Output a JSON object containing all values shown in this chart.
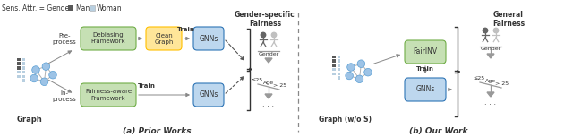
{
  "title_left": "(a) Prior Works",
  "title_right": "(b) Our Work",
  "legend_text": "Sens. Attr. = Gender",
  "man_label": "Man",
  "woman_label": "Woman",
  "gender_specific_label": "Gender-specific\nFairness",
  "general_fairness_label": "General\nFairness",
  "graph_label": "Graph",
  "graph_wo_s_label": "Graph (w/o S)",
  "pre_process_label": "Pre-\nprocess",
  "in_process_label": "In-\nprocess",
  "debiasing_box_label": "Debiasing\nFramework",
  "clean_graph_box_label": "Clean\nGraph",
  "fairness_aware_box_label": "Fairness-aware\nFramework",
  "gnns_label_1": "GNNs",
  "gnns_label_2": "GNNs",
  "fairinv_label": "FairINV",
  "gnns_label_3": "GNNs",
  "train_label_1": "Train",
  "train_label_2": "Train",
  "train_label_3": "Train",
  "gender_label": "Gender",
  "age_label": "Age",
  "age_range_1": "≤25",
  "age_range_2": "> 25",
  "gender_label2": "Gender",
  "age_label2": "Age",
  "age_range_3": "≤25",
  "age_range_4": "> 25",
  "dots": ".",
  "box_green_color": "#c6e0b4",
  "box_yellow_color": "#ffe699",
  "box_blue_color": "#bdd7ee",
  "box_green_edge": "#70ad47",
  "box_yellow_edge": "#ffc000",
  "box_blue_edge": "#2e75b6",
  "graph_node_color": "#9dc3e6",
  "graph_node_edge": "#5a9fd4",
  "graph_edge_color": "#b0b0b0",
  "dark_square_color": "#595959",
  "light_square_color": "#b8cfe0",
  "arrow_color": "#888888",
  "dashed_arrow_color": "#555555",
  "divider_color": "#888888",
  "text_color": "#333333",
  "brace_color": "#333333",
  "balance_color": "#999999",
  "person_dark_color": "#666666",
  "person_light_color": "#c0c0c0",
  "background_color": "#ffffff",
  "fig_w": 6.4,
  "fig_h": 1.53
}
